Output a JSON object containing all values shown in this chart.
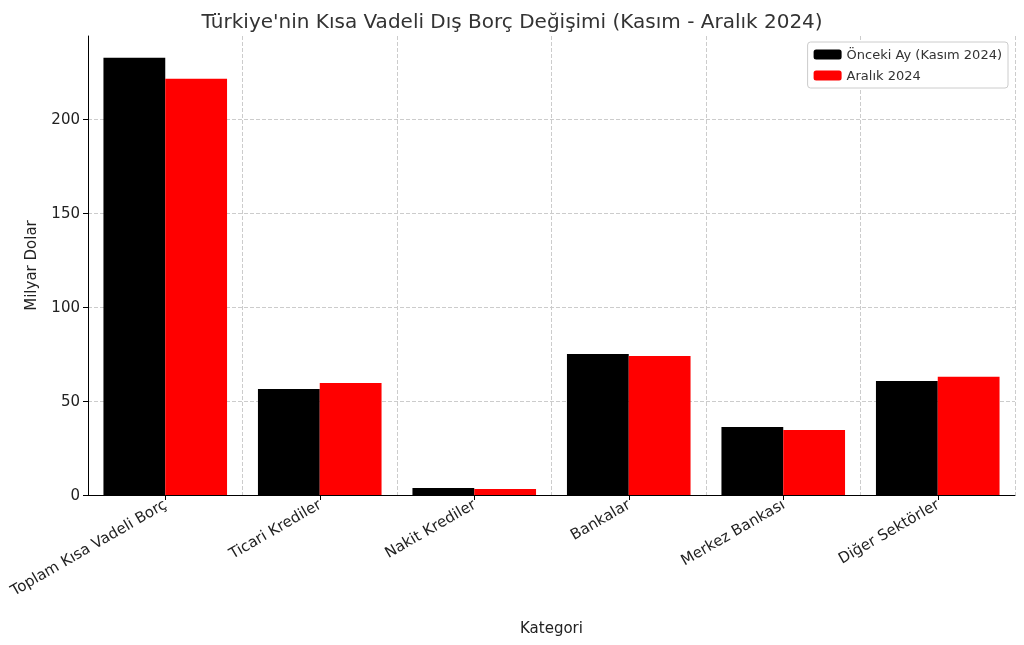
{
  "chart_data": {
    "type": "bar",
    "title": "Türkiye'nin Kısa Vadeli Dış Borç Değişimi (Kasım - Aralık 2024)",
    "xlabel": "Kategori",
    "ylabel": "Milyar Dolar",
    "categories": [
      "Toplam Kısa Vadeli Borç",
      "Ticari Krediler",
      "Nakit Krediler",
      "Bankalar",
      "Merkez Bankası",
      "Diğer Sektörler"
    ],
    "series": [
      {
        "name": "Önceki Ay (Kasım 2024)",
        "color": "#000000",
        "values": [
          232.4,
          56.4,
          3.7,
          75.0,
          36.2,
          60.6
        ]
      },
      {
        "name": "Aralık 2024",
        "color": "#ff0000",
        "values": [
          221.3,
          59.6,
          3.2,
          73.9,
          34.6,
          62.8
        ]
      }
    ],
    "ylim": [
      0,
      244
    ],
    "yticks": [
      0,
      50,
      100,
      150,
      200
    ],
    "grid": true,
    "legend": "top right"
  }
}
